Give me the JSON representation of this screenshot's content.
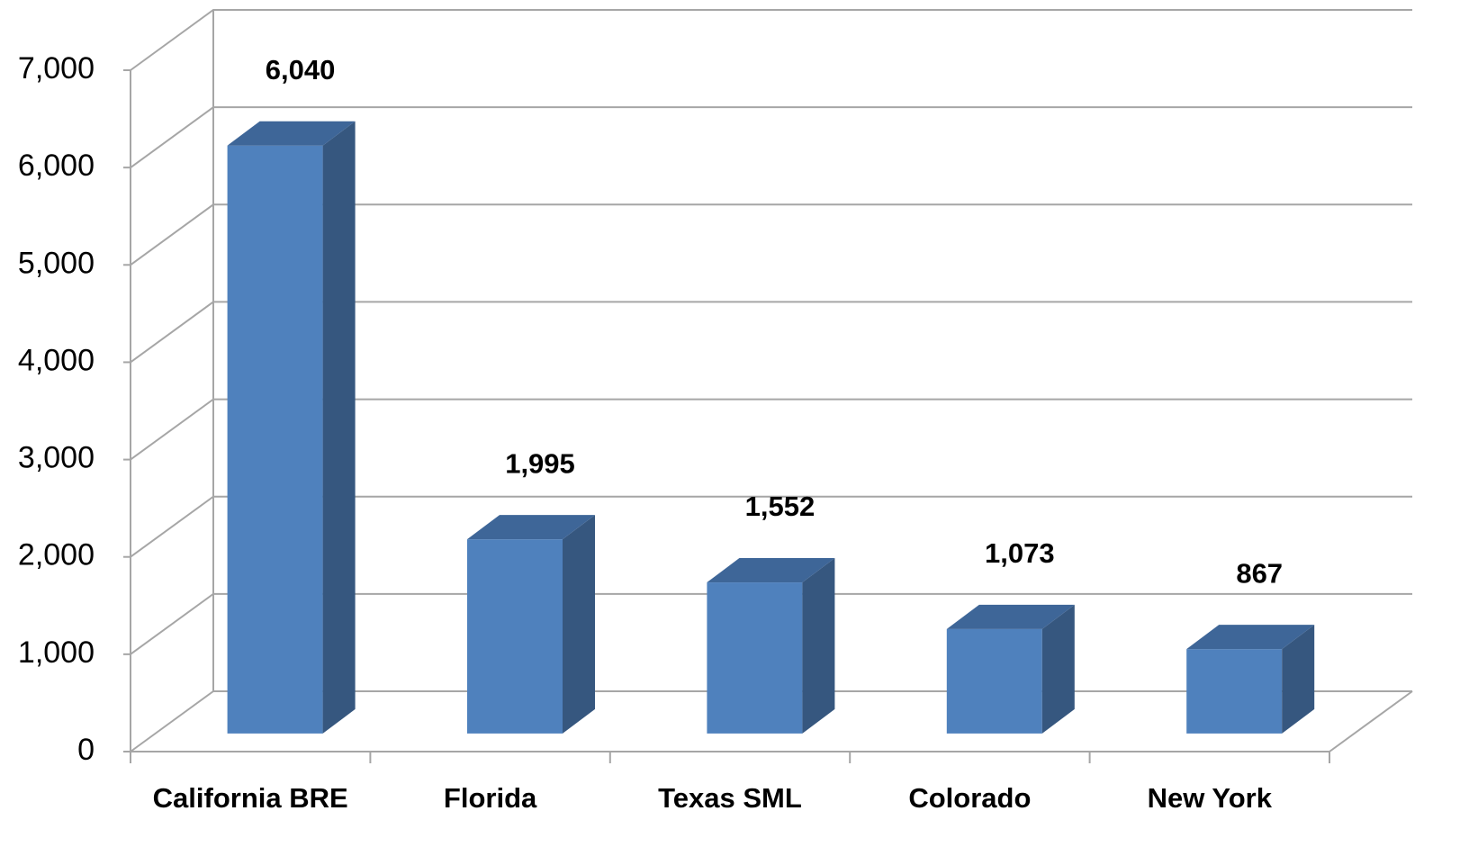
{
  "chart_data": {
    "type": "bar",
    "categories": [
      "California BRE",
      "Florida",
      "Texas SML",
      "Colorado",
      "New York"
    ],
    "values": [
      6040,
      1995,
      1552,
      1073,
      867
    ],
    "value_labels": [
      "6,040",
      "1,995",
      "1,552",
      "1,073",
      "867"
    ],
    "color": "#4f81bd",
    "ylim": [
      0,
      7000
    ],
    "yticks": [
      0,
      {
        "value": 1000,
        "label": "1,000"
      },
      {
        "value": 2000,
        "label": "2,000"
      },
      {
        "value": 3000,
        "label": "3,000"
      },
      {
        "value": 4000,
        "label": "4,000"
      },
      {
        "value": 5000,
        "label": "5,000"
      },
      {
        "value": 6000,
        "label": "6,000"
      },
      {
        "value": 7000,
        "label": "7,000"
      }
    ],
    "grid": true
  }
}
